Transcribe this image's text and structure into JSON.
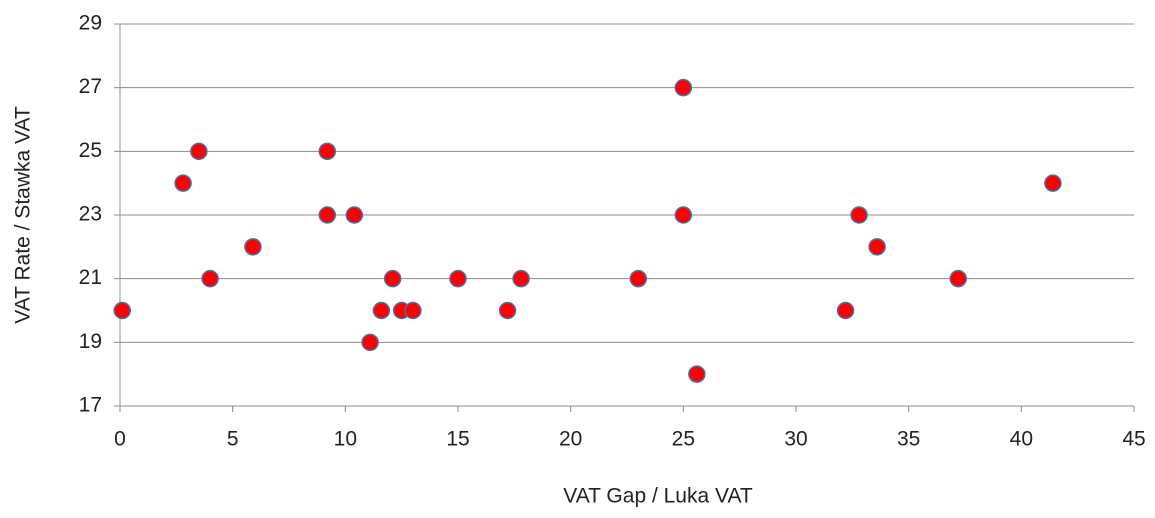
{
  "chart_data": {
    "type": "scatter",
    "x_label": "VAT Gap / Luka VAT",
    "y_label": "VAT Rate / Stawka VAT",
    "series": [
      {
        "color": "#ff0000",
        "x": [
          0.1,
          2.8,
          3.5,
          4.0,
          5.9,
          9.2,
          9.2,
          10.4,
          11.1,
          11.6,
          12.1,
          12.5,
          13.0,
          15.0,
          17.2,
          17.8,
          23.0,
          25.0,
          25.0,
          25.6,
          32.2,
          32.8,
          33.6,
          37.2,
          41.4
        ],
        "values": [
          20,
          24,
          25,
          21,
          22,
          25,
          23,
          23,
          19,
          20,
          21,
          20,
          20,
          21,
          20,
          21,
          21,
          27,
          23,
          18,
          20,
          23,
          22,
          21,
          24
        ]
      }
    ],
    "xlim": [
      0,
      45
    ],
    "xticks": [
      0,
      5,
      10,
      15,
      20,
      25,
      30,
      35,
      40,
      45
    ],
    "ylim": [
      17,
      29
    ],
    "yticks": [
      17,
      19,
      21,
      23,
      25,
      27,
      29
    ],
    "grid": true
  }
}
